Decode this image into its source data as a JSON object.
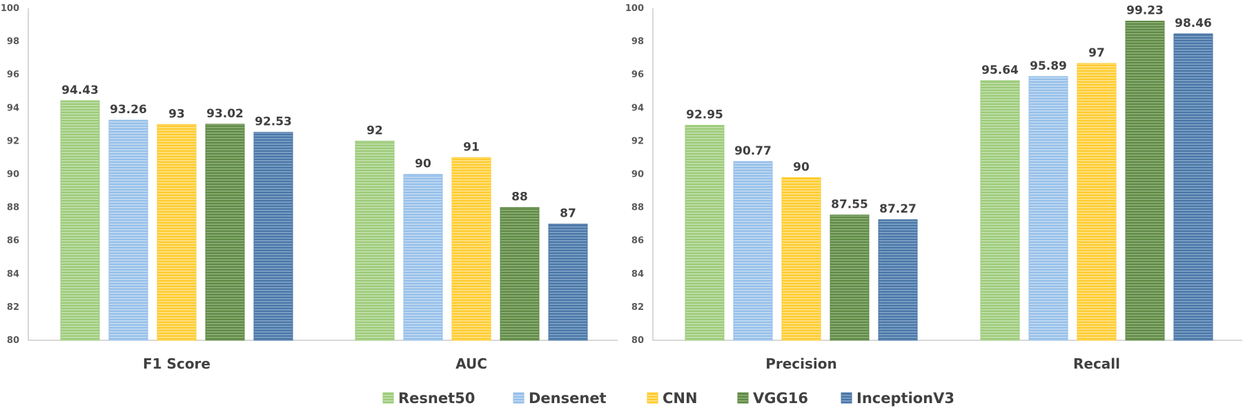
{
  "chart_data": [
    {
      "type": "bar",
      "categories": [
        "F1 Score",
        "AUC"
      ],
      "ylim": [
        80,
        100
      ],
      "yticks": [
        "80",
        "82",
        "84",
        "86",
        "88",
        "90",
        "92",
        "94",
        "96",
        "98",
        "100"
      ],
      "grid": false,
      "series": [
        {
          "name": "Resnet50",
          "values": [
            94.43,
            92
          ],
          "labels": [
            "94.43",
            "92"
          ]
        },
        {
          "name": "Densenet",
          "values": [
            93.26,
            90
          ],
          "labels": [
            "93.26",
            "90"
          ]
        },
        {
          "name": "CNN",
          "values": [
            93,
            91
          ],
          "labels": [
            "93",
            "91"
          ]
        },
        {
          "name": "VGG16",
          "values": [
            93.02,
            88
          ],
          "labels": [
            "93.02",
            "88"
          ]
        },
        {
          "name": "InceptionV3",
          "values": [
            92.53,
            87
          ],
          "labels": [
            "92.53",
            "87"
          ]
        }
      ]
    },
    {
      "type": "bar",
      "categories": [
        "Precision",
        "Recall"
      ],
      "ylim": [
        80,
        100
      ],
      "yticks": [
        "80",
        "82",
        "84",
        "86",
        "88",
        "90",
        "92",
        "94",
        "96",
        "98",
        "100"
      ],
      "grid": false,
      "series": [
        {
          "name": "Resnet50",
          "values": [
            92.95,
            95.64
          ],
          "labels": [
            "92.95",
            "95.64"
          ]
        },
        {
          "name": "Densenet",
          "values": [
            90.77,
            95.89
          ],
          "labels": [
            "90.77",
            "95.89"
          ]
        },
        {
          "name": "CNN",
          "values": [
            89.8,
            96.68
          ],
          "labels": [
            "90",
            "97"
          ]
        },
        {
          "name": "VGG16",
          "values": [
            87.55,
            99.23
          ],
          "labels": [
            "87.55",
            "99.23"
          ]
        },
        {
          "name": "InceptionV3",
          "values": [
            87.27,
            98.46
          ],
          "labels": [
            "87.27",
            "98.46"
          ]
        }
      ]
    }
  ],
  "legend": {
    "placement": "bottom",
    "items": [
      {
        "name": "Resnet50",
        "color": "#9CCB78",
        "stripe": "#C5E0B0"
      },
      {
        "name": "Densenet",
        "color": "#94BFE9",
        "stripe": "#C6DCF3"
      },
      {
        "name": "CNN",
        "color": "#FFCB2E",
        "stripe": "#FFE48F"
      },
      {
        "name": "VGG16",
        "color": "#5F8A45",
        "stripe": "#8FB07A"
      },
      {
        "name": "InceptionV3",
        "color": "#4A76A7",
        "stripe": "#82A4C8"
      }
    ]
  }
}
